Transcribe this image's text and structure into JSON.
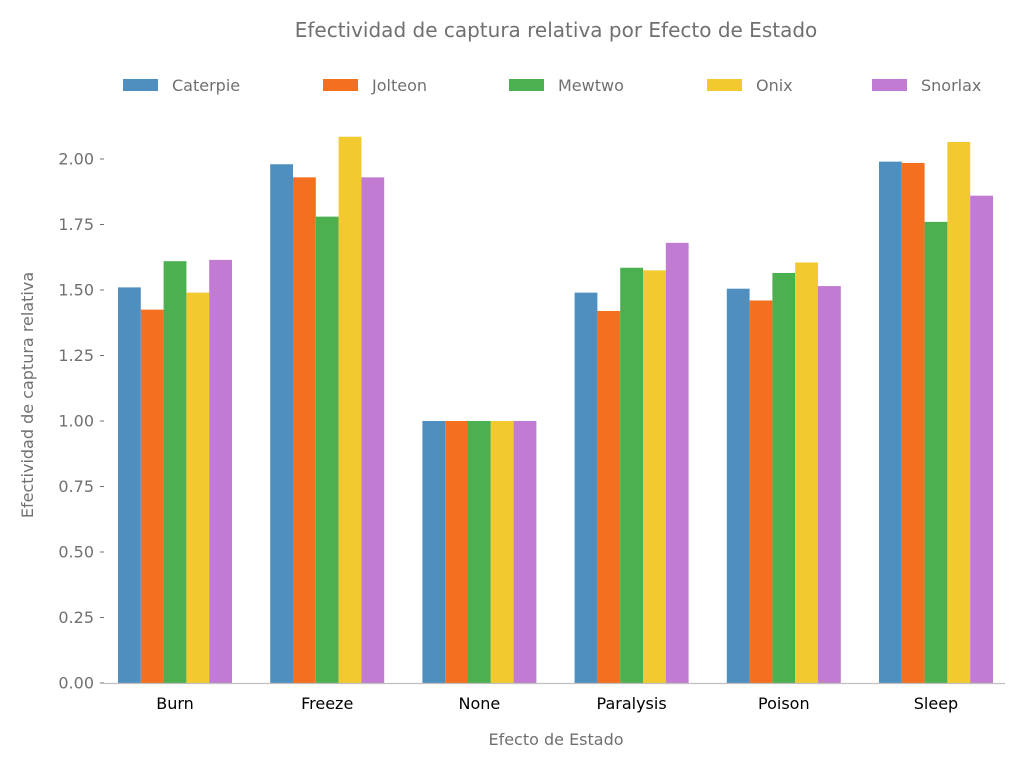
{
  "chart_data": {
    "type": "bar",
    "title": "Efectividad de captura relativa por Efecto de Estado",
    "xlabel": "Efecto de Estado",
    "ylabel": "Efectividad de captura relativa",
    "categories": [
      "Burn",
      "Freeze",
      "None",
      "Paralysis",
      "Poison",
      "Sleep"
    ],
    "ylim": [
      0,
      2.15
    ],
    "yticks": [
      "0.00",
      "0.25",
      "0.50",
      "0.75",
      "1.00",
      "1.25",
      "1.50",
      "1.75",
      "2.00"
    ],
    "legend_position": "top",
    "grid": false,
    "series": [
      {
        "name": "Caterpie",
        "color": "#4f8fc0",
        "values": [
          1.51,
          1.98,
          1.0,
          1.49,
          1.505,
          1.99
        ]
      },
      {
        "name": "Jolteon",
        "color": "#f37021",
        "values": [
          1.425,
          1.93,
          1.0,
          1.42,
          1.46,
          1.985
        ]
      },
      {
        "name": "Mewtwo",
        "color": "#4caf50",
        "values": [
          1.61,
          1.78,
          1.0,
          1.585,
          1.565,
          1.76
        ]
      },
      {
        "name": "Onix",
        "color": "#f2c92f",
        "values": [
          1.49,
          2.085,
          1.0,
          1.575,
          1.605,
          2.065
        ]
      },
      {
        "name": "Snorlax",
        "color": "#c27bd3",
        "values": [
          1.615,
          1.93,
          1.0,
          1.68,
          1.515,
          1.86
        ]
      }
    ]
  }
}
